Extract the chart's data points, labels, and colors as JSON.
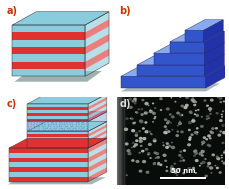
{
  "panel_labels": [
    "a)",
    "b)",
    "c)",
    "d)"
  ],
  "label_color": "#cc3300",
  "background": "#ffffff",
  "shadow_color": "#3d6060",
  "red_color": "#e03030",
  "cyan_color": "#88ccdd",
  "blue_solid": "#3355cc",
  "blue_light": "#88aaee",
  "blue_porous": "#aabbdd",
  "blue_side": "#2233aa",
  "scale_bar_text": "50 nm",
  "scale_bar_color": "#ffffff",
  "noise_seed": 42
}
